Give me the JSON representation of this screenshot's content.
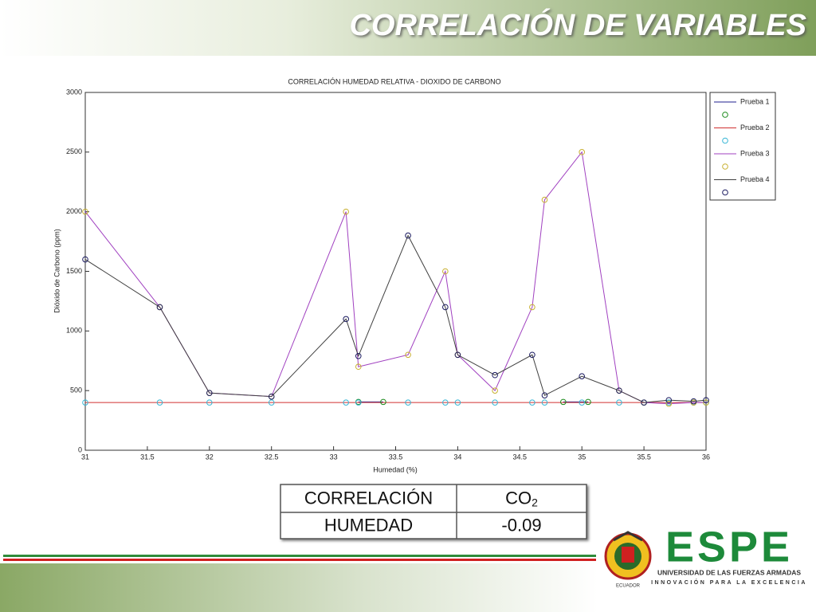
{
  "slide_title": "CORRELACIÓN DE VARIABLES",
  "chart_data": {
    "type": "line",
    "title": "CORRELACIÓN HUMEDAD RELATIVA - DIOXIDO DE CARBONO",
    "x_label": "Humedad (%)",
    "y_label": "Dióxido de Carbono (ppm)",
    "xlim": [
      31,
      36
    ],
    "xticks": [
      31,
      31.5,
      32,
      32.5,
      33,
      33.5,
      34,
      34.5,
      35,
      35.5,
      36
    ],
    "ylim": [
      0,
      3000
    ],
    "yticks": [
      0,
      500,
      1000,
      1500,
      2000,
      2500,
      3000
    ],
    "grid": false,
    "legend": "outside-right",
    "series": [
      {
        "name": "Prueba 1",
        "color": "#1f1f8f",
        "marker_color": "#1a8a1a",
        "x": [
          33.2,
          33.4,
          34,
          34.85,
          35.05
        ],
        "values": [
          405,
          405,
          null,
          405,
          405
        ]
      },
      {
        "name": "Prueba 2",
        "color": "#d03030",
        "marker_color": "#35b5d5",
        "x": [
          31,
          31.6,
          32,
          32.5,
          33.1,
          33.2,
          33.6,
          33.9,
          34,
          34.3,
          34.6,
          34.7,
          35,
          35.3,
          35.5,
          35.7,
          35.9,
          36
        ],
        "values": [
          400,
          400,
          400,
          400,
          400,
          400,
          400,
          400,
          400,
          400,
          400,
          400,
          400,
          400,
          400,
          400,
          400,
          400
        ]
      },
      {
        "name": "Prueba 3",
        "color": "#a040c0",
        "marker_color": "#c8b030",
        "x": [
          31,
          31.6,
          32,
          32.5,
          33.1,
          33.2,
          33.6,
          33.9,
          34,
          34.3,
          34.6,
          34.7,
          35,
          35.3,
          35.5,
          35.7,
          35.9,
          36
        ],
        "values": [
          2000,
          1200,
          480,
          450,
          2000,
          700,
          800,
          1500,
          800,
          500,
          1200,
          2100,
          2500,
          500,
          400,
          390,
          400,
          400
        ]
      },
      {
        "name": "Prueba 4",
        "color": "#404040",
        "marker_color": "#1a1a60",
        "x": [
          31,
          31.6,
          32,
          32.5,
          33.1,
          33.2,
          33.6,
          33.9,
          34,
          34.3,
          34.6,
          34.7,
          35,
          35.3,
          35.5,
          35.7,
          35.9,
          36
        ],
        "values": [
          1600,
          1200,
          480,
          450,
          1100,
          790,
          1800,
          1200,
          800,
          630,
          800,
          460,
          620,
          500,
          400,
          420,
          410,
          420
        ]
      }
    ]
  },
  "table": {
    "rows": [
      [
        {
          "text": "CORRELACIÓN"
        },
        {
          "text": "CO",
          "sub": "2"
        }
      ],
      [
        {
          "text": "HUMEDAD"
        },
        {
          "text": "-0.09"
        }
      ]
    ]
  },
  "logo": {
    "name": "ESPE",
    "line1": "UNIVERSIDAD DE LAS FUERZAS ARMADAS",
    "line2": "INNOVACIÓN PARA LA EXCELENCIA",
    "country": "ECUADOR"
  }
}
